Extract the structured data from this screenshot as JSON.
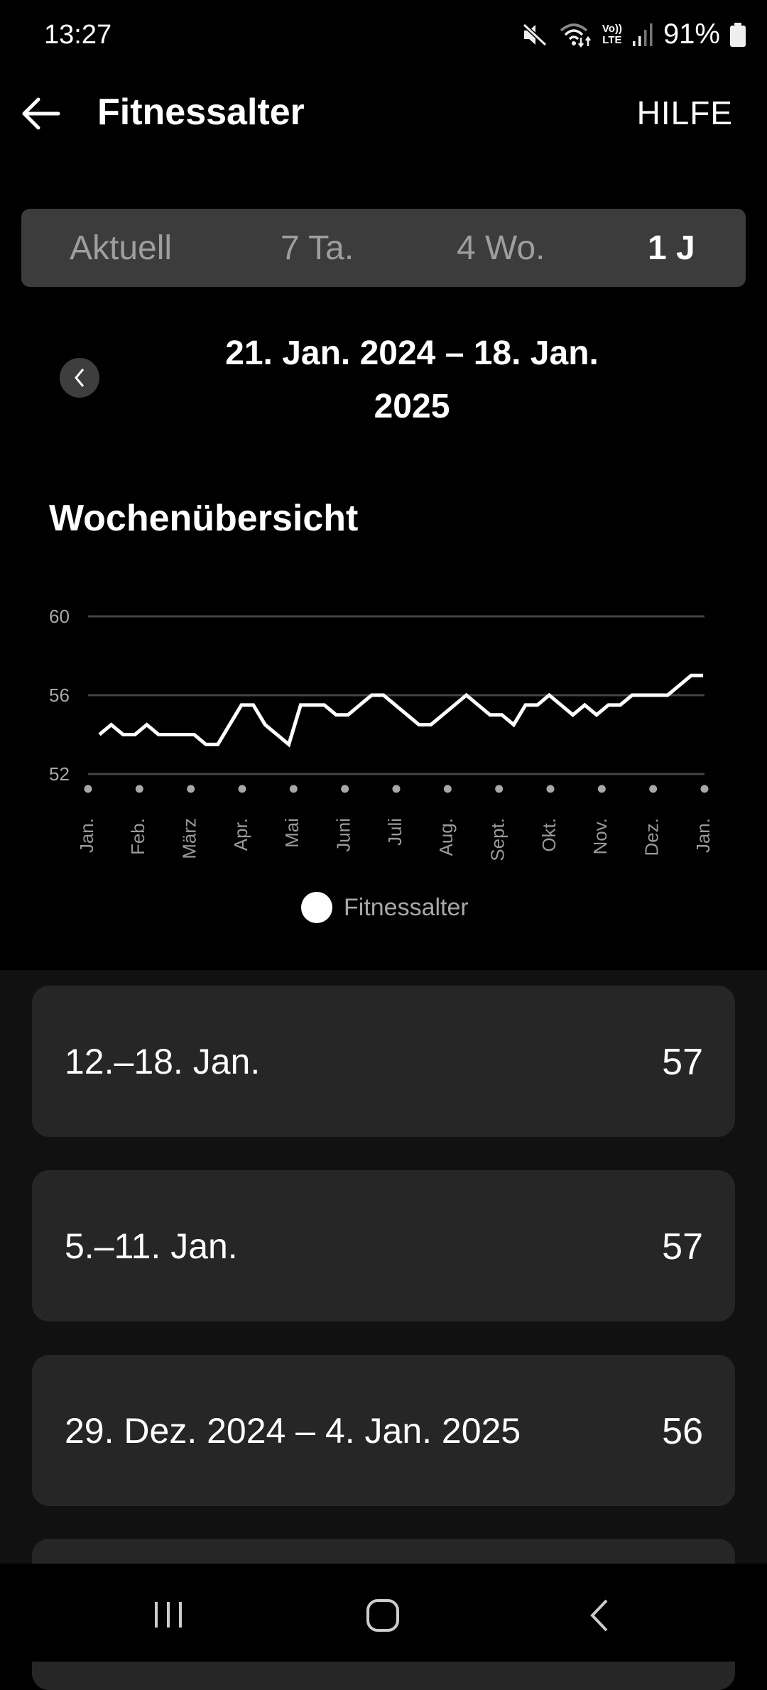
{
  "status_bar": {
    "time": "13:27",
    "battery": "91%",
    "icons": [
      "mute-icon",
      "wifi-icon",
      "volte-icon",
      "signal-icon",
      "battery-icon"
    ],
    "volte_top": "Vo))",
    "volte_bottom": "LTE"
  },
  "header": {
    "title": "Fitnessalter",
    "help_label": "HILFE"
  },
  "tabs": [
    {
      "label": "Aktuell"
    },
    {
      "label": "7 Ta."
    },
    {
      "label": "4 Wo."
    },
    {
      "label": "1 J",
      "active": true
    }
  ],
  "date_range": {
    "line1": "21. Jan. 2024 – 18. Jan.",
    "line2": "2025"
  },
  "section_title": "Wochenübersicht",
  "chart_data": {
    "type": "line",
    "ylim": [
      52,
      60
    ],
    "yticks": [
      "60",
      "56",
      "52"
    ],
    "ytick_values": [
      60,
      56,
      52
    ],
    "xtick_labels": [
      "Jan.",
      "Feb.",
      "März",
      "Apr.",
      "Mai",
      "Juni",
      "Juli",
      "Aug.",
      "Sept.",
      "Okt.",
      "Nov.",
      "Dez.",
      "Jan."
    ],
    "grid": true,
    "legend_placement": "bottom",
    "series": [
      {
        "name": "Fitnessalter",
        "color": "#ffffff",
        "values": [
          54,
          54.5,
          54,
          54,
          54.5,
          54,
          54,
          54,
          54,
          53.5,
          53.5,
          54.5,
          55.5,
          55.5,
          54.5,
          54,
          53.5,
          55.5,
          55.5,
          55.5,
          55,
          55,
          55.5,
          56,
          56,
          55.5,
          55,
          54.5,
          54.5,
          55,
          55.5,
          56,
          55.5,
          55,
          55,
          54.5,
          55.5,
          55.5,
          56,
          55.5,
          55,
          55.5,
          55,
          55.5,
          55.5,
          56,
          56,
          56,
          56,
          56.5,
          57,
          57
        ]
      }
    ]
  },
  "legend": {
    "label": "Fitnessalter"
  },
  "weeks": [
    {
      "label": "12.–18. Jan.",
      "value": "57"
    },
    {
      "label": "5.–11. Jan.",
      "value": "57"
    },
    {
      "label": "29. Dez. 2024 – 4. Jan. 2025",
      "value": "56"
    }
  ],
  "colors": {
    "background": "#000000",
    "segment_bg": "#3c3c3c",
    "card_bg": "#262626",
    "lower_bg": "#111111",
    "grid": "#444444"
  }
}
